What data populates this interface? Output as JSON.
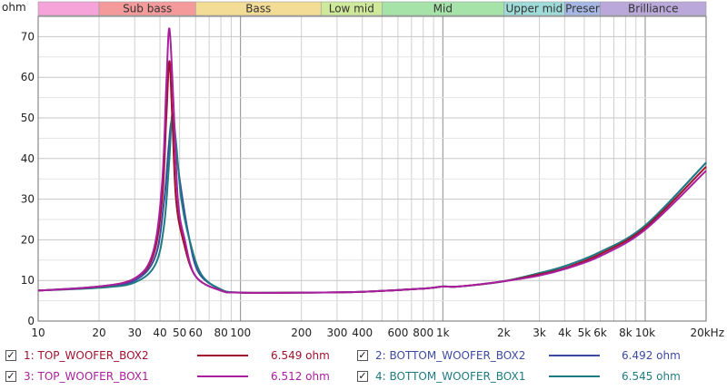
{
  "chart_data": {
    "type": "line",
    "title": "",
    "xlabel": "",
    "ylabel": "ohm",
    "x_scale": "log",
    "xlim": [
      10,
      20000
    ],
    "ylim": [
      0,
      75
    ],
    "grid": true,
    "y_ticks": [
      "0",
      "10",
      "20",
      "30",
      "40",
      "50",
      "60",
      "70"
    ],
    "x_ticks": [
      {
        "v": 10,
        "label": "10"
      },
      {
        "v": 20,
        "label": "20"
      },
      {
        "v": 30,
        "label": "30"
      },
      {
        "v": 40,
        "label": "40"
      },
      {
        "v": 50,
        "label": "50"
      },
      {
        "v": 60,
        "label": "60"
      },
      {
        "v": 80,
        "label": "80"
      },
      {
        "v": 100,
        "label": "100"
      },
      {
        "v": 200,
        "label": "200"
      },
      {
        "v": 300,
        "label": "300"
      },
      {
        "v": 400,
        "label": "400"
      },
      {
        "v": 600,
        "label": "600"
      },
      {
        "v": 800,
        "label": "800"
      },
      {
        "v": 1000,
        "label": "1k"
      },
      {
        "v": 2000,
        "label": "2k"
      },
      {
        "v": 3000,
        "label": "3k"
      },
      {
        "v": 4000,
        "label": "4k"
      },
      {
        "v": 5000,
        "label": "5k"
      },
      {
        "v": 6000,
        "label": "6k"
      },
      {
        "v": 8000,
        "label": "8k"
      },
      {
        "v": 10000,
        "label": "10k"
      },
      {
        "v": 20000,
        "label": "20kHz"
      }
    ],
    "bands": [
      {
        "label": "",
        "from": 10,
        "to": 20,
        "color": "#f5a3d9"
      },
      {
        "label": "Sub bass",
        "from": 20,
        "to": 60,
        "color": "#f59a9a"
      },
      {
        "label": "Bass",
        "from": 60,
        "to": 250,
        "color": "#f3dc95"
      },
      {
        "label": "Low mid",
        "from": 250,
        "to": 500,
        "color": "#cfe99a"
      },
      {
        "label": "Mid",
        "from": 500,
        "to": 2000,
        "color": "#a5e3a8"
      },
      {
        "label": "Upper mid",
        "from": 2000,
        "to": 4000,
        "color": "#9fdbd9"
      },
      {
        "label": "Preser",
        "from": 4000,
        "to": 6000,
        "color": "#a6b7e6"
      },
      {
        "label": "Brilliance",
        "from": 6000,
        "to": 20000,
        "color": "#b9a8d9"
      }
    ],
    "series": [
      {
        "name": "1: TOP_WOOFER_BOX2",
        "color": "#a0112e",
        "value_label": "6.549 ohm",
        "x": [
          10,
          20,
          30,
          37,
          41,
          43,
          44.5,
          46,
          48,
          52,
          60,
          80,
          100,
          200,
          400,
          800,
          1000,
          1200,
          2000,
          3000,
          4000,
          6000,
          10000,
          20000
        ],
        "y": [
          7.5,
          8.5,
          10.5,
          16,
          30,
          50,
          64,
          50,
          30,
          20,
          11,
          7.5,
          7,
          7,
          7.2,
          8,
          8.5,
          8.5,
          9.8,
          11.5,
          13,
          16.5,
          23,
          38
        ]
      },
      {
        "name": "2: BOTTOM_WOOFER_BOX2",
        "color": "#3d4aa0",
        "value_label": "6.492 ohm",
        "x": [
          10,
          20,
          30,
          38,
          42,
          44,
          45.5,
          47,
          50,
          55,
          62,
          80,
          100,
          200,
          400,
          800,
          1000,
          1200,
          2000,
          3000,
          4000,
          6000,
          10000,
          20000
        ],
        "y": [
          7.5,
          8.5,
          10,
          16,
          30,
          42,
          49,
          46,
          35,
          22,
          12,
          7.8,
          7,
          7,
          7.2,
          8,
          8.5,
          8.5,
          9.8,
          11.8,
          13.5,
          17,
          23.5,
          39
        ]
      },
      {
        "name": "3: TOP_WOOFER_BOX1",
        "color": "#a8209e",
        "value_label": "6.512 ohm",
        "x": [
          10,
          20,
          30,
          37,
          41,
          43,
          44.5,
          46.5,
          49,
          53,
          60,
          80,
          100,
          200,
          400,
          800,
          1000,
          1200,
          2000,
          3000,
          4000,
          6000,
          10000,
          20000
        ],
        "y": [
          7.5,
          8.5,
          10.5,
          17,
          34,
          58,
          72,
          55,
          30,
          20,
          11,
          7.5,
          7,
          7,
          7.2,
          8,
          8.5,
          8.5,
          9.8,
          11.2,
          12.8,
          16,
          22.5,
          37
        ]
      },
      {
        "name": "4: BOTTOM_WOOFER_BOX1",
        "color": "#1e7b82",
        "value_label": "6.545 ohm",
        "x": [
          10,
          20,
          30,
          38,
          42,
          44.5,
          46,
          48,
          51,
          56,
          64,
          80,
          100,
          200,
          400,
          800,
          1000,
          1200,
          2000,
          3000,
          4000,
          6000,
          10000,
          20000
        ],
        "y": [
          7.5,
          8.2,
          9.5,
          14,
          24,
          40,
          51,
          44,
          30,
          20,
          11.5,
          7.8,
          7,
          7,
          7.2,
          8,
          8.5,
          8.5,
          9.8,
          11.8,
          13.5,
          17,
          23.5,
          39
        ]
      }
    ]
  },
  "legend": [
    {
      "label": "1: TOP_WOOFER_BOX2",
      "value": "6.549 ohm",
      "checked": "✓"
    },
    {
      "label": "2: BOTTOM_WOOFER_BOX2",
      "value": "6.492 ohm",
      "checked": "✓"
    },
    {
      "label": "3: TOP_WOOFER_BOX1",
      "value": "6.512 ohm",
      "checked": "✓"
    },
    {
      "label": "4: BOTTOM_WOOFER_BOX1",
      "value": "6.545 ohm",
      "checked": "✓"
    }
  ]
}
